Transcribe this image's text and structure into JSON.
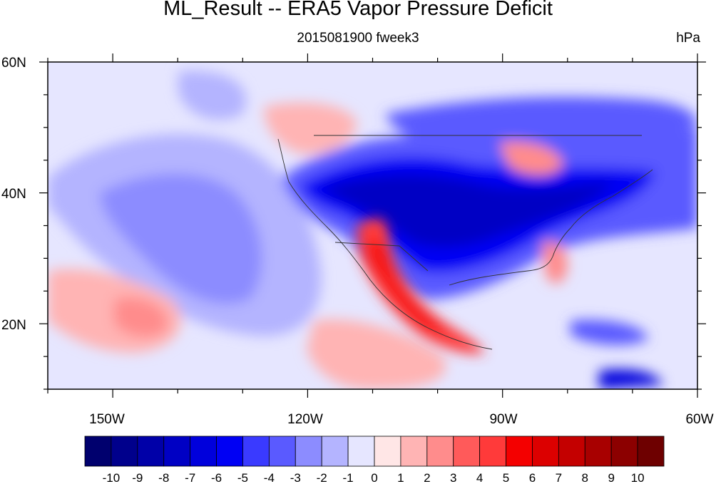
{
  "title": "ML_Result -- ERA5 Vapor Pressure Deficit",
  "subtitle": "2015081900 fweek3",
  "units": "hPa",
  "map": {
    "projection": "lat-lon",
    "lat_range": [
      10,
      60
    ],
    "lon_range": [
      -160,
      -60
    ],
    "lat_ticks": [
      {
        "value": 60,
        "label": "60N"
      },
      {
        "value": 40,
        "label": "40N"
      },
      {
        "value": 20,
        "label": "20N"
      }
    ],
    "lon_ticks": [
      {
        "value": -150,
        "label": "150W"
      },
      {
        "value": -120,
        "label": "120W"
      },
      {
        "value": -90,
        "label": "90W"
      },
      {
        "value": -60,
        "label": "60W"
      }
    ]
  },
  "colorbar": {
    "labels": [
      "-10",
      "-9",
      "-8",
      "-7",
      "-6",
      "-5",
      "-4",
      "-3",
      "-2",
      "-1",
      "0",
      "1",
      "2",
      "3",
      "4",
      "5",
      "6",
      "7",
      "8",
      "9",
      "10"
    ],
    "colors": [
      "#00006e",
      "#00008c",
      "#0000a8",
      "#0000c4",
      "#0000dc",
      "#0000f4",
      "#3a3aff",
      "#5a5aff",
      "#8c8cff",
      "#b4b4ff",
      "#e6e6ff",
      "#ffe6e6",
      "#ffb4b4",
      "#ff8c8c",
      "#ff5a5a",
      "#ff3a3a",
      "#f40000",
      "#dc0000",
      "#c40000",
      "#a80000",
      "#8c0000",
      "#6e0000"
    ]
  }
}
